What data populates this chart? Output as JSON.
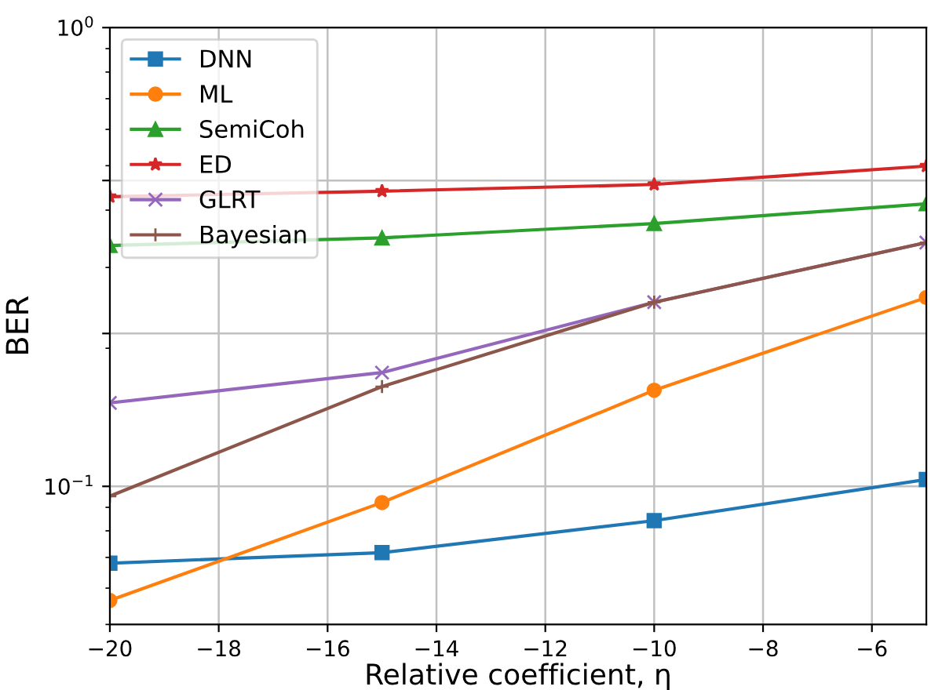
{
  "chart_data": {
    "type": "line",
    "xlabel": "Relative coefficient, η",
    "ylabel": "BER",
    "x": [
      -20,
      -15,
      -10,
      -5
    ],
    "series": [
      {
        "name": "DNN",
        "color": "#1f77b4",
        "marker": "square",
        "values": [
          0.068,
          0.0717,
          0.0842,
          0.1035
        ]
      },
      {
        "name": "ML",
        "color": "#ff7f0e",
        "marker": "circle",
        "values": [
          0.0564,
          0.0922,
          0.162,
          0.258
        ]
      },
      {
        "name": "SemiCoh",
        "color": "#2ca02c",
        "marker": "triangle",
        "values": [
          0.335,
          0.348,
          0.374,
          0.413
        ]
      },
      {
        "name": "ED",
        "color": "#d62728",
        "marker": "star",
        "values": [
          0.428,
          0.44,
          0.455,
          0.499
        ]
      },
      {
        "name": "GLRT",
        "color": "#9467bd",
        "marker": "cross",
        "values": [
          0.152,
          0.177,
          0.252,
          0.34
        ]
      },
      {
        "name": "Bayesian",
        "color": "#8c564b",
        "marker": "plus",
        "values": [
          0.0952,
          0.165,
          0.252,
          0.34
        ]
      }
    ],
    "log": "y",
    "xlim": [
      -20,
      -5
    ],
    "xticks": [
      -20,
      -18,
      -16,
      -14,
      -12,
      -10,
      -8,
      -6
    ],
    "ylim": [
      0.05,
      1
    ],
    "yticks": [
      {
        "value": 0.1,
        "label": "10$^{−1}$"
      },
      {
        "value": 0.2154,
        "label": null
      },
      {
        "value": 0.4642,
        "label": null
      },
      {
        "value": 1,
        "label": "10$^{0}$"
      }
    ],
    "grid": true,
    "legend": "top left",
    "line_style": "solid"
  }
}
